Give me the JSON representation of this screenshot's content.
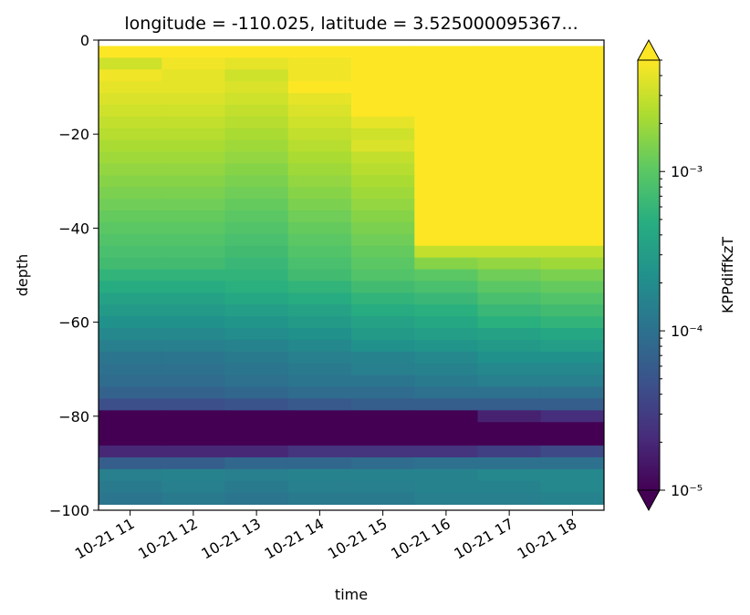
{
  "chart_data": {
    "type": "heatmap",
    "title": "longitude = -110.025, latitude = 3.525000095367...",
    "xlabel": "time",
    "ylabel": "depth",
    "x_ticks": [
      "10-21 11",
      "10-21 12",
      "10-21 13",
      "10-21 14",
      "10-21 15",
      "10-21 16",
      "10-21 17",
      "10-21 18"
    ],
    "y_ticks": [
      0,
      -20,
      -40,
      -60,
      -80,
      -100
    ],
    "ylim": [
      -100,
      0
    ],
    "colorbar": {
      "label": "KPPdiffKzT",
      "scale": "log",
      "range": [
        1e-05,
        0.005
      ],
      "tick_labels": [
        "10⁻⁵",
        "10⁻⁴",
        "10⁻³"
      ],
      "extend": "both",
      "colormap": "viridis"
    },
    "depth_levels": [
      -2.5,
      -5,
      -7.5,
      -10,
      -12.5,
      -15,
      -17.5,
      -20,
      -22.5,
      -25,
      -27.5,
      -30,
      -32.5,
      -35,
      -37.5,
      -40,
      -42.5,
      -45,
      -47.5,
      -50,
      -52.5,
      -55,
      -57.5,
      -60,
      -62.5,
      -65,
      -67.5,
      -70,
      -72.5,
      -75,
      -77.5,
      -80,
      -82.5,
      -85,
      -87.5,
      -90,
      -92.5,
      -95,
      -97.5
    ],
    "log10_values": [
      [
        -2.3,
        -2.3,
        -2.3,
        -2.3,
        -2.3,
        -2.3,
        -2.3,
        -2.3
      ],
      [
        -2.5,
        -2.35,
        -2.4,
        -2.35,
        -2.3,
        -2.3,
        -2.3,
        -2.3
      ],
      [
        -2.35,
        -2.4,
        -2.5,
        -2.35,
        -2.3,
        -2.3,
        -2.3,
        -2.3
      ],
      [
        -2.4,
        -2.4,
        -2.45,
        -2.3,
        -2.3,
        -2.3,
        -2.3,
        -2.3
      ],
      [
        -2.45,
        -2.45,
        -2.5,
        -2.4,
        -2.3,
        -2.3,
        -2.3,
        -2.3
      ],
      [
        -2.5,
        -2.5,
        -2.55,
        -2.45,
        -2.3,
        -2.3,
        -2.3,
        -2.3
      ],
      [
        -2.55,
        -2.55,
        -2.6,
        -2.5,
        -2.4,
        -2.3,
        -2.3,
        -2.3
      ],
      [
        -2.6,
        -2.6,
        -2.65,
        -2.55,
        -2.5,
        -2.3,
        -2.3,
        -2.3
      ],
      [
        -2.65,
        -2.65,
        -2.7,
        -2.6,
        -2.45,
        -2.3,
        -2.3,
        -2.3
      ],
      [
        -2.7,
        -2.7,
        -2.75,
        -2.65,
        -2.55,
        -2.3,
        -2.3,
        -2.3
      ],
      [
        -2.75,
        -2.75,
        -2.8,
        -2.7,
        -2.6,
        -2.3,
        -2.3,
        -2.3
      ],
      [
        -2.8,
        -2.8,
        -2.85,
        -2.75,
        -2.65,
        -2.3,
        -2.3,
        -2.3
      ],
      [
        -2.85,
        -2.85,
        -2.9,
        -2.8,
        -2.7,
        -2.3,
        -2.3,
        -2.3
      ],
      [
        -2.9,
        -2.9,
        -2.95,
        -2.85,
        -2.75,
        -2.3,
        -2.3,
        -2.3
      ],
      [
        -2.95,
        -2.95,
        -3.0,
        -2.9,
        -2.8,
        -2.3,
        -2.3,
        -2.3
      ],
      [
        -3.0,
        -3.0,
        -3.05,
        -2.95,
        -2.85,
        -2.3,
        -2.3,
        -2.3
      ],
      [
        -3.05,
        -3.05,
        -3.1,
        -3.0,
        -2.9,
        -2.3,
        -2.3,
        -2.3
      ],
      [
        -3.1,
        -3.1,
        -3.15,
        -3.05,
        -2.95,
        -2.55,
        -2.55,
        -2.55
      ],
      [
        -3.15,
        -3.15,
        -3.2,
        -3.1,
        -3.0,
        -2.8,
        -2.75,
        -2.7
      ],
      [
        -3.25,
        -3.25,
        -3.25,
        -3.15,
        -3.05,
        -3.0,
        -2.9,
        -2.85
      ],
      [
        -3.35,
        -3.35,
        -3.3,
        -3.25,
        -3.15,
        -3.1,
        -3.0,
        -2.95
      ],
      [
        -3.45,
        -3.45,
        -3.4,
        -3.35,
        -3.25,
        -3.2,
        -3.1,
        -3.05
      ],
      [
        -3.55,
        -3.55,
        -3.5,
        -3.45,
        -3.35,
        -3.3,
        -3.2,
        -3.15
      ],
      [
        -3.65,
        -3.65,
        -3.6,
        -3.55,
        -3.45,
        -3.4,
        -3.3,
        -3.25
      ],
      [
        -3.75,
        -3.75,
        -3.7,
        -3.65,
        -3.55,
        -3.5,
        -3.45,
        -3.4
      ],
      [
        -3.85,
        -3.85,
        -3.8,
        -3.75,
        -3.65,
        -3.6,
        -3.55,
        -3.5
      ],
      [
        -3.95,
        -3.95,
        -3.9,
        -3.85,
        -3.8,
        -3.75,
        -3.65,
        -3.65
      ],
      [
        -4.0,
        -4.0,
        -3.95,
        -3.9,
        -3.85,
        -3.8,
        -3.75,
        -3.75
      ],
      [
        -4.05,
        -4.05,
        -4.0,
        -3.95,
        -3.95,
        -3.9,
        -3.85,
        -3.85
      ],
      [
        -4.15,
        -4.15,
        -4.1,
        -4.05,
        -4.05,
        -4.0,
        -4.0,
        -4.0
      ],
      [
        -4.35,
        -4.35,
        -4.3,
        -4.25,
        -4.2,
        -4.2,
        -4.2,
        -4.2
      ],
      [
        -5.0,
        -5.0,
        -5.0,
        -5.0,
        -5.0,
        -5.0,
        -4.75,
        -4.65
      ],
      [
        -5.0,
        -5.0,
        -5.0,
        -5.0,
        -5.0,
        -5.0,
        -5.0,
        -5.0
      ],
      [
        -5.0,
        -5.0,
        -5.0,
        -5.0,
        -5.0,
        -5.0,
        -5.0,
        -5.0
      ],
      [
        -4.7,
        -4.7,
        -4.7,
        -4.6,
        -4.6,
        -4.6,
        -4.5,
        -4.4
      ],
      [
        -4.2,
        -4.2,
        -4.1,
        -4.1,
        -4.05,
        -4.0,
        -4.0,
        -4.0
      ],
      [
        -3.85,
        -3.8,
        -3.85,
        -3.8,
        -3.8,
        -3.8,
        -3.75,
        -3.75
      ],
      [
        -3.9,
        -3.85,
        -3.9,
        -3.85,
        -3.85,
        -3.8,
        -3.8,
        -3.75
      ],
      [
        -3.95,
        -3.9,
        -3.95,
        -3.9,
        -3.9,
        -3.85,
        -3.85,
        -3.8
      ]
    ]
  }
}
